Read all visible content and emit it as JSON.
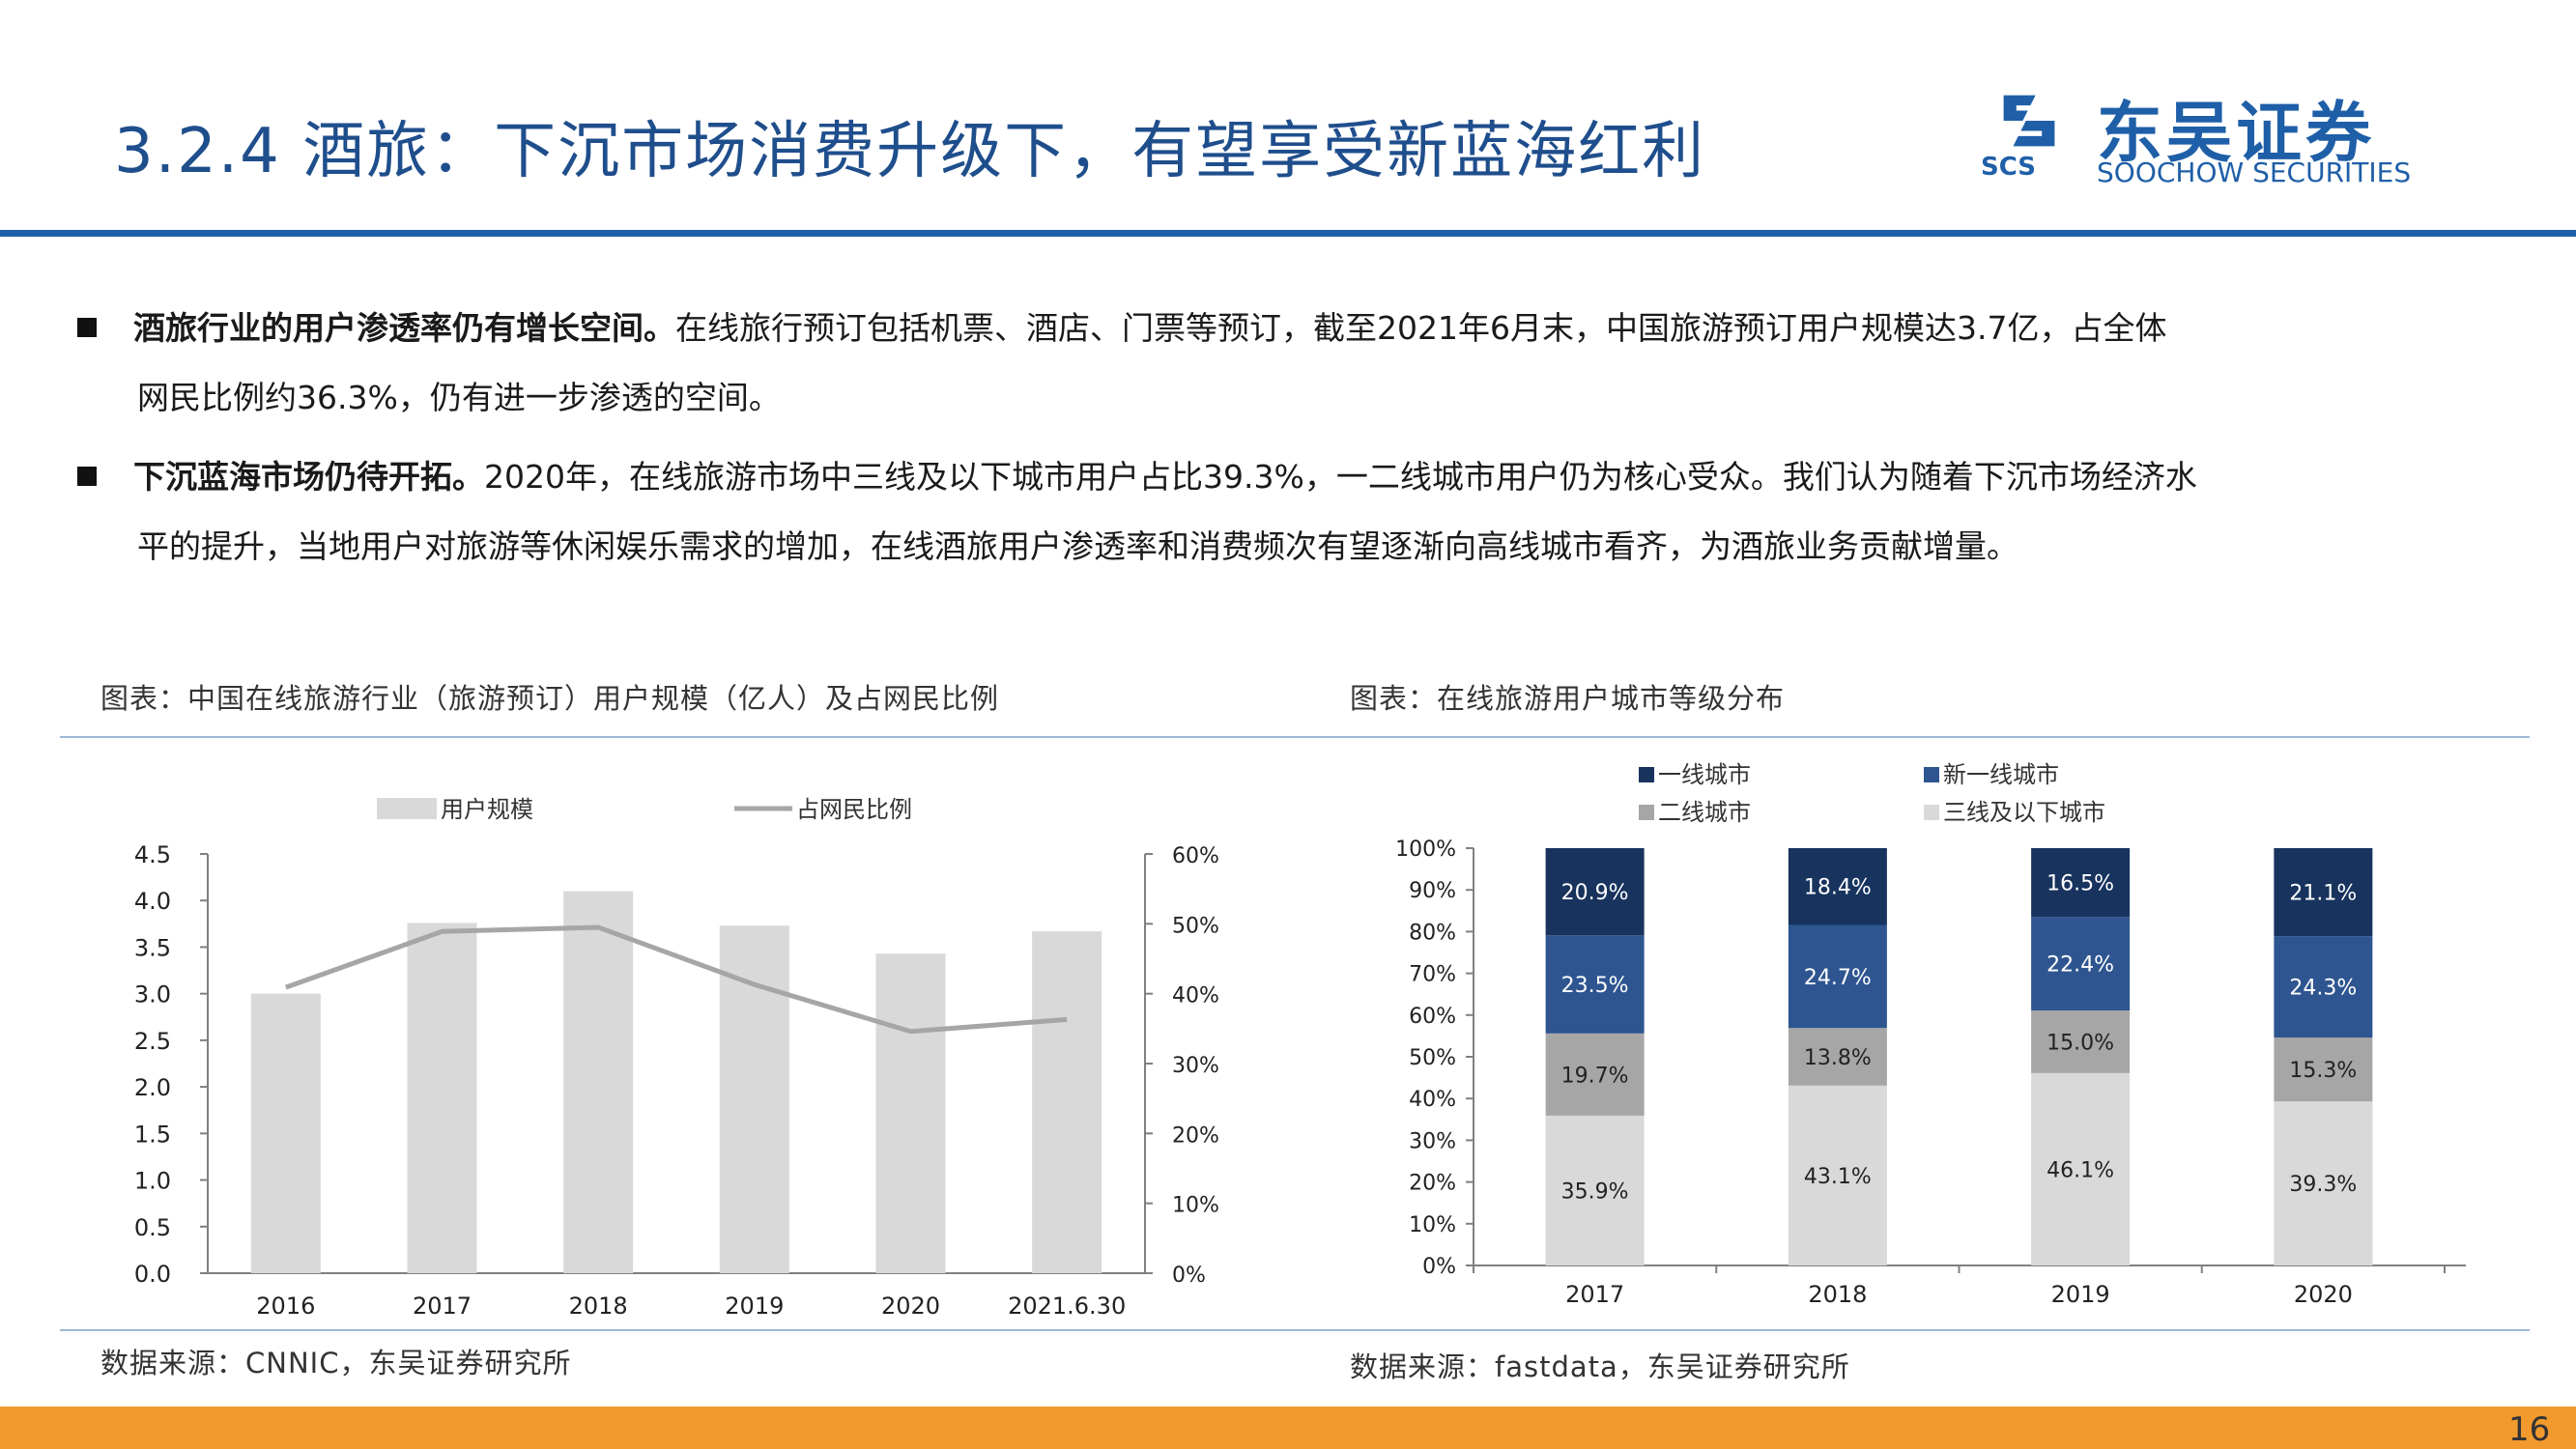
{
  "slide": {
    "title": "3.2.4 酒旅：下沉市场消费升级下，有望享受新蓝海红利",
    "page_number": "16"
  },
  "logo": {
    "name_cn": "东吴证券",
    "name_en": "SOOCHOW SECURITIES",
    "abbr": "SCS"
  },
  "bullets": [
    {
      "lead": "酒旅行业的用户渗透率仍有增长空间。",
      "line1": "在线旅行预订包括机票、酒店、门票等预订，截至2021年6月末，中国旅游预订用户规模达3.7亿，占全体",
      "line2": "网民比例约36.3%，仍有进一步渗透的空间。"
    },
    {
      "lead": "下沉蓝海市场仍待开拓。",
      "line1": "2020年，在线旅游市场中三线及以下城市用户占比39.3%，一二线城市用户仍为核心受众。我们认为随着下沉市场经济水",
      "line2": "平的提升，当地用户对旅游等休闲娱乐需求的增加，在线酒旅用户渗透率和消费频次有望逐渐向高线城市看齐，为酒旅业务贡献增量。"
    }
  ],
  "left_figure": {
    "caption": "图表：中国在线旅游行业（旅游预订）用户规模（亿人）及占网民比例",
    "source": "数据来源：CNNIC，东吴证券研究所"
  },
  "right_figure": {
    "caption": "图表：在线旅游用户城市等级分布",
    "source": "数据来源：fastdata，东吴证券研究所"
  },
  "chart_data": [
    {
      "type": "bar",
      "categories": [
        "2016",
        "2017",
        "2018",
        "2019",
        "2020",
        "2021.6.30"
      ],
      "series": [
        {
          "name": "用户规模",
          "type": "bar",
          "axis": "left",
          "values": [
            3.0,
            3.76,
            4.1,
            3.73,
            3.43,
            3.67
          ],
          "color": "#d9d9d9"
        },
        {
          "name": "占网民比例",
          "type": "line",
          "axis": "right",
          "values": [
            40.9,
            48.9,
            49.5,
            41.3,
            34.6,
            36.3
          ],
          "color": "#a6a6a6"
        }
      ],
      "ylim": [
        0,
        4.5
      ],
      "y_ticks": [
        "0.0",
        "0.5",
        "1.0",
        "1.5",
        "2.0",
        "2.5",
        "3.0",
        "3.5",
        "4.0",
        "4.5"
      ],
      "y2lim": [
        0,
        60
      ],
      "y2_ticks": [
        "0%",
        "10%",
        "20%",
        "30%",
        "40%",
        "50%",
        "60%"
      ],
      "legend_position": "top"
    },
    {
      "type": "bar",
      "stacked": true,
      "categories": [
        "2017",
        "2018",
        "2019",
        "2020"
      ],
      "series": [
        {
          "name": "三线及以下城市",
          "values": [
            35.9,
            43.1,
            46.1,
            39.3
          ],
          "labels": [
            "35.9%",
            "43.1%",
            "46.1%",
            "39.3%"
          ],
          "color": "#d9d9d9"
        },
        {
          "name": "二线城市",
          "values": [
            19.7,
            13.8,
            15.0,
            15.3
          ],
          "labels": [
            "19.7%",
            "13.8%",
            "15.0%",
            "15.3%"
          ],
          "color": "#a6a6a6"
        },
        {
          "name": "新一线城市",
          "values": [
            23.5,
            24.7,
            22.4,
            24.3
          ],
          "labels": [
            "23.5%",
            "24.7%",
            "22.4%",
            "24.3%"
          ],
          "color": "#2e5590"
        },
        {
          "name": "一线城市",
          "values": [
            20.9,
            18.4,
            16.5,
            21.1
          ],
          "labels": [
            "20.9%",
            "18.4%",
            "16.5%",
            "21.1%"
          ],
          "color": "#17335e"
        }
      ],
      "legend_order": [
        "一线城市",
        "新一线城市",
        "二线城市",
        "三线及以下城市"
      ],
      "ylim": [
        0,
        100
      ],
      "y_ticks": [
        "0%",
        "10%",
        "20%",
        "30%",
        "40%",
        "50%",
        "60%",
        "70%",
        "80%",
        "90%",
        "100%"
      ],
      "legend_position": "top"
    }
  ]
}
